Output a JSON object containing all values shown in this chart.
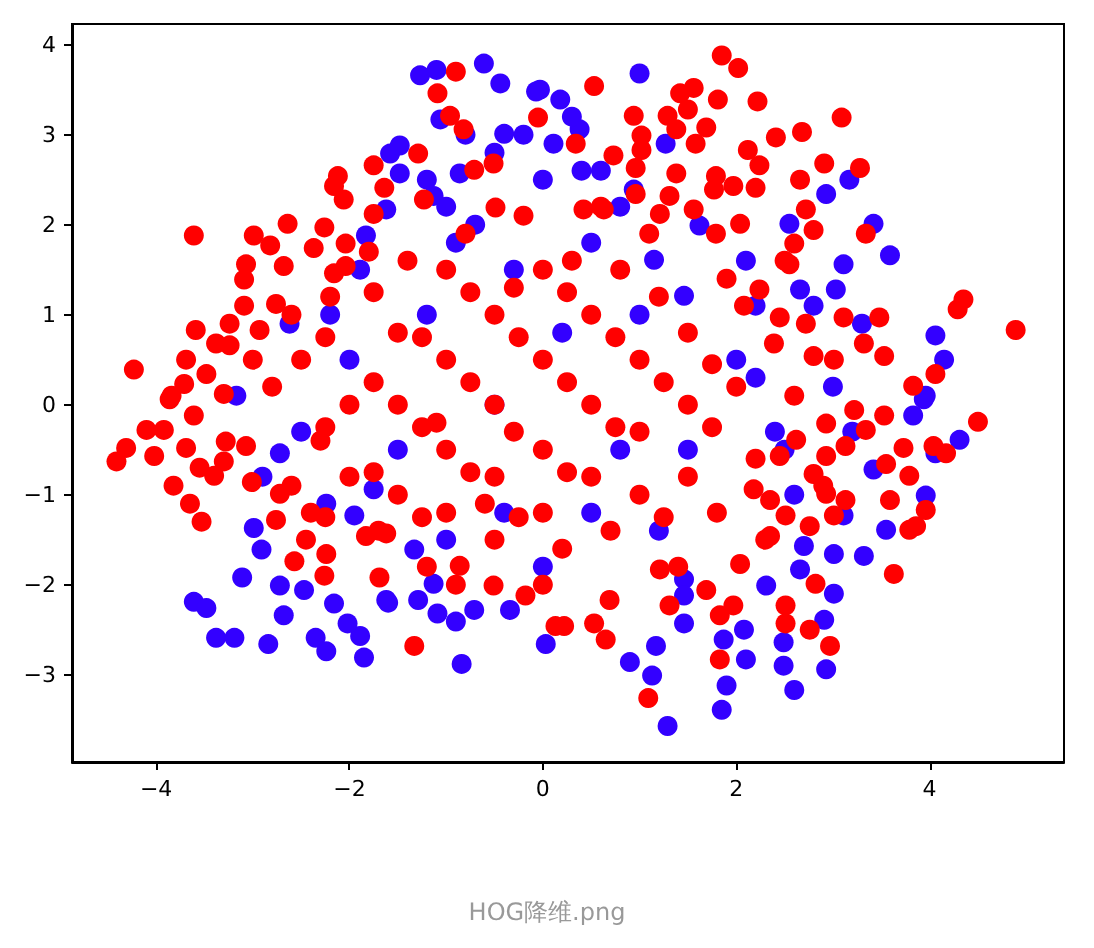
{
  "chart_data": {
    "type": "scatter",
    "marker": "circle",
    "xlim": [
      -4.87,
      5.39
    ],
    "ylim": [
      -3.97,
      4.23
    ],
    "xticks": [
      -4,
      -2,
      0,
      2,
      4
    ],
    "yticks": [
      -3,
      -2,
      -1,
      0,
      1,
      2,
      3,
      4
    ],
    "annotations": [
      "HOG降维.png"
    ],
    "series": [
      {
        "color": "#3300ff",
        "x": [
          -1.27,
          -1.1,
          -0.61,
          -0.44,
          -0.07,
          -1.06,
          -1.58,
          -1.48,
          -1.48,
          -0.4,
          -0.86,
          -1.13,
          -1.83,
          -1.62,
          -1.89,
          -2.62,
          -3.17,
          1.0,
          0.18,
          -0.03,
          0.38,
          0.11,
          2.93,
          3.17,
          2.55,
          3.42,
          3.59,
          3.11,
          2.66,
          3.03,
          4.06,
          4.15,
          3.94,
          1.27,
          0.94,
          1.62,
          1.46,
          1.15,
          -3.61,
          -3.48,
          -3.38,
          -3.19,
          -2.84,
          -3.11,
          -2.99,
          -2.91,
          -2.72,
          -2.68,
          -2.47,
          -2.35,
          -2.24,
          -1.85,
          -1.89,
          -2.02,
          -2.16,
          -1.62,
          -1.29,
          -1.09,
          -0.9,
          -0.71,
          -0.84,
          -0.34,
          0.03,
          -1.13,
          -2.72,
          -2.24,
          -1.95,
          -1.75,
          -1.33,
          1.29,
          1.85,
          1.9,
          2.49,
          2.6,
          2.93,
          2.1,
          1.13,
          1.17,
          0.9,
          1.46,
          1.87,
          2.08,
          2.49,
          2.91,
          3.01,
          2.31,
          2.66,
          2.7,
          3.01,
          3.32,
          3.55,
          3.96,
          4.31,
          4.06,
          3.83,
          3.96,
          3.42,
          3.11,
          1.46,
          1.46,
          -1.0,
          -0.5,
          0.0,
          -0.3,
          0.5,
          1.0,
          -2.0,
          -1.5,
          -1.0,
          0.0,
          0.5,
          1.5,
          2.0,
          2.5,
          3.0,
          -2.5,
          -0.5,
          0.8,
          -1.6,
          -0.4,
          1.2,
          2.2,
          -2.2,
          0.2,
          -0.7,
          0.6,
          2.8,
          3.3,
          -1.2,
          -2.9,
          -0.2,
          0.3,
          -0.8,
          0.8,
          0.4,
          -1.2,
          -0.9,
          2.1,
          2.4,
          2.2,
          3.2,
          2.6
        ],
        "values": [
          3.66,
          3.72,
          3.79,
          3.57,
          3.48,
          3.17,
          2.79,
          2.88,
          2.57,
          3.01,
          2.57,
          2.32,
          1.88,
          2.17,
          1.5,
          0.9,
          0.1,
          3.68,
          3.39,
          3.5,
          3.06,
          2.9,
          2.34,
          2.5,
          2.01,
          2.01,
          1.66,
          1.56,
          1.28,
          1.28,
          0.77,
          0.5,
          0.06,
          2.9,
          2.39,
          1.99,
          1.21,
          1.61,
          -2.19,
          -2.26,
          -2.59,
          -2.59,
          -2.66,
          -1.92,
          -1.37,
          -1.61,
          -2.01,
          -2.34,
          -2.06,
          -2.59,
          -2.74,
          -2.81,
          -2.57,
          -2.43,
          -2.21,
          -2.17,
          -2.17,
          -2.32,
          -2.41,
          -2.28,
          -2.88,
          -2.28,
          -2.66,
          -1.99,
          -0.54,
          -1.1,
          -1.23,
          -0.94,
          -1.61,
          -3.57,
          -3.39,
          -3.12,
          -2.9,
          -3.17,
          -2.94,
          -2.83,
          -3.01,
          -2.68,
          -2.86,
          -2.43,
          -2.61,
          -2.5,
          -2.64,
          -2.39,
          -2.1,
          -2.01,
          -1.83,
          -1.57,
          -1.66,
          -1.68,
          -1.39,
          -1.01,
          -0.39,
          -0.54,
          -0.12,
          0.1,
          -0.72,
          -1.23,
          -1.94,
          -2.12,
          2.2,
          2.8,
          2.5,
          1.5,
          1.8,
          1.0,
          0.5,
          -0.5,
          -1.5,
          -1.8,
          -1.2,
          -0.5,
          0.5,
          -0.5,
          0.2,
          -0.3,
          0.0,
          -0.5,
          -2.2,
          -1.2,
          -1.4,
          1.1,
          1.0,
          0.8,
          2.0,
          2.6,
          1.1,
          0.9,
          1.0,
          -0.8,
          3.0,
          3.2,
          3.0,
          2.2,
          2.6,
          2.5,
          1.8,
          1.6,
          -0.3,
          0.3,
          -0.3,
          -1.0
        ]
      },
      {
        "color": "#ff0000",
        "x": [
          -0.9,
          -1.09,
          -0.96,
          -0.82,
          -0.05,
          -1.29,
          -1.75,
          -0.51,
          -0.71,
          -2.12,
          -2.16,
          -2.06,
          -1.64,
          -1.75,
          -1.23,
          -0.49,
          -3.61,
          -2.99,
          -2.82,
          -2.64,
          -2.26,
          -2.37,
          -2.04,
          -3.07,
          -3.09,
          -2.68,
          -2.16,
          -2.04,
          -3.09,
          -2.76,
          -3.59,
          -3.24,
          -2.93,
          -3.69,
          -3.38,
          -3.24,
          -4.23,
          -3.84,
          -3.71,
          -3.48,
          -3.3,
          -4.41,
          -4.31,
          -4.1,
          -3.92,
          -4.02,
          -3.86,
          -3.61,
          -3.69,
          -3.82,
          -3.65,
          -3.53,
          -3.55,
          -3.4,
          -3.3,
          -3.28,
          -3.01,
          -3.07,
          -2.72,
          -2.76,
          -2.57,
          -2.45,
          -2.24,
          -2.26,
          -1.69,
          -1.33,
          -1.83,
          -1.62,
          -0.51,
          -0.18,
          -0.86,
          0.13,
          1.85,
          2.02,
          0.53,
          1.42,
          1.56,
          1.81,
          2.22,
          0.94,
          1.29,
          1.5,
          1.38,
          1.02,
          1.69,
          2.41,
          2.68,
          3.09,
          1.58,
          2.12,
          0.73,
          1.02,
          2.24,
          2.91,
          3.28,
          0.96,
          1.38,
          1.79,
          2.66,
          1.97,
          2.2,
          0.96,
          1.77,
          1.31,
          1.56,
          1.21,
          2.72,
          2.8,
          3.34,
          2.04,
          1.79,
          2.6,
          0.34,
          0.63,
          0.42,
          4.35,
          4.29,
          4.89,
          3.48,
          3.11,
          2.72,
          2.45,
          2.08,
          2.24,
          2.55,
          2.8,
          3.01,
          3.32,
          3.53,
          3.83,
          4.06,
          2.39,
          4.5,
          4.04,
          4.17,
          3.73,
          3.55,
          3.79,
          3.59,
          3.96,
          3.79,
          3.86,
          3.63,
          3.13,
          2.93,
          3.34,
          3.53,
          3.22,
          2.93,
          2.62,
          2.8,
          2.93,
          3.13,
          3.01,
          2.51,
          2.76,
          2.35,
          2.82,
          2.51,
          2.51,
          2.76,
          2.97,
          1.83,
          1.09,
          1.83,
          1.97,
          1.31,
          0.69,
          0.22,
          0.53,
          0.65,
          1.21,
          1.69,
          2.04,
          2.35,
          2.45,
          2.18,
          -2.5,
          -2.0,
          -2.0,
          -1.5,
          -1.5,
          -1.5,
          -1.0,
          -1.0,
          -1.0,
          -1.0,
          -0.5,
          -0.5,
          -0.5,
          -0.5,
          0.0,
          0.0,
          0.0,
          0.0,
          0.5,
          0.5,
          0.5,
          1.0,
          1.0,
          1.0,
          1.5,
          1.5,
          1.5,
          -2.2,
          -1.8,
          -0.8,
          0.3,
          -2.8,
          -2.3,
          -1.2,
          0.2,
          2.0,
          1.8,
          -0.2,
          0.8,
          -1.7,
          1.2,
          -0.3,
          0.7,
          -2.6,
          2.2,
          -2.25,
          -2.25,
          -2.25,
          -1.75,
          -1.75,
          -1.75,
          -1.25,
          -1.25,
          -1.25,
          -0.75,
          -0.75,
          -0.75,
          -0.25,
          -0.25,
          0.25,
          0.25,
          0.25,
          0.75,
          0.75,
          1.25,
          1.25,
          1.75,
          1.75,
          -2.6,
          -3.0,
          -2.4,
          0.6,
          -0.3,
          1.1,
          -1.4,
          1.4,
          0.0,
          -0.9,
          2.3,
          2.5,
          1.9,
          2.6,
          2.9,
          -1.1,
          -0.6
        ],
        "values": [
          3.7,
          3.46,
          3.21,
          3.06,
          3.19,
          2.79,
          2.66,
          2.68,
          2.61,
          2.54,
          2.43,
          2.28,
          2.41,
          2.12,
          2.28,
          2.19,
          1.88,
          1.88,
          1.77,
          2.01,
          1.97,
          1.74,
          1.79,
          1.56,
          1.39,
          1.54,
          1.46,
          1.54,
          1.1,
          1.12,
          0.83,
          0.9,
          0.83,
          0.5,
          0.68,
          0.66,
          0.39,
          0.1,
          0.23,
          0.34,
          0.12,
          -0.63,
          -0.48,
          -0.28,
          -0.28,
          -0.57,
          0.06,
          -0.12,
          -0.48,
          -0.9,
          -1.1,
          -1.3,
          -0.7,
          -0.79,
          -0.63,
          -0.41,
          -0.86,
          -0.46,
          -0.99,
          -1.28,
          -1.74,
          -1.5,
          -1.66,
          -1.9,
          -1.92,
          -2.68,
          -1.46,
          -1.43,
          -2.01,
          -2.12,
          -1.79,
          -2.46,
          3.88,
          3.74,
          3.54,
          3.46,
          3.52,
          3.39,
          3.37,
          3.21,
          3.21,
          3.28,
          3.06,
          2.99,
          3.08,
          2.97,
          3.03,
          3.19,
          2.9,
          2.83,
          2.77,
          2.83,
          2.66,
          2.68,
          2.63,
          2.63,
          2.57,
          2.54,
          2.5,
          2.43,
          2.41,
          2.34,
          2.39,
          2.32,
          2.17,
          2.12,
          2.17,
          1.94,
          1.9,
          2.01,
          1.9,
          1.79,
          2.9,
          2.17,
          2.17,
          1.17,
          1.06,
          0.83,
          0.97,
          0.97,
          0.9,
          0.97,
          1.1,
          1.28,
          1.56,
          0.54,
          0.5,
          0.68,
          0.54,
          0.21,
          0.34,
          0.68,
          -0.19,
          -0.46,
          -0.54,
          -0.48,
          -0.66,
          -0.79,
          -1.06,
          -1.17,
          -1.39,
          -1.35,
          -1.88,
          -0.46,
          -0.57,
          -0.28,
          -0.12,
          -0.06,
          -0.21,
          -0.39,
          -0.77,
          -0.99,
          -1.06,
          -1.23,
          -1.23,
          -1.35,
          -1.46,
          -1.99,
          -2.23,
          -2.43,
          -2.5,
          -2.68,
          -2.83,
          -3.26,
          -2.34,
          -2.23,
          -2.23,
          -2.17,
          -2.46,
          -2.43,
          -2.61,
          -1.83,
          -2.06,
          -1.77,
          -1.06,
          -0.57,
          -0.94,
          0.5,
          0.0,
          -0.8,
          0.8,
          0.0,
          -1.0,
          1.5,
          0.5,
          -0.5,
          -1.2,
          1.0,
          0.0,
          -0.8,
          -1.5,
          1.5,
          0.5,
          -0.5,
          -1.2,
          1.0,
          0.0,
          -0.8,
          0.5,
          -0.3,
          -1.0,
          0.8,
          0.0,
          -0.8,
          1.2,
          1.7,
          1.9,
          1.6,
          0.2,
          -0.4,
          -1.8,
          -1.6,
          0.2,
          -1.2,
          2.1,
          1.5,
          -1.4,
          1.2,
          -0.3,
          -1.4,
          -0.9,
          -0.6,
          -1.25,
          -0.25,
          0.75,
          -0.75,
          0.25,
          1.25,
          -1.25,
          -0.25,
          0.75,
          -0.75,
          0.25,
          1.25,
          -1.25,
          0.75,
          -0.75,
          0.25,
          1.25,
          -0.25,
          0.75,
          -1.25,
          0.25,
          -0.25,
          0.45,
          1.0,
          0.5,
          -1.2,
          2.2,
          1.3,
          1.9,
          1.6,
          -1.8,
          -2.0,
          -2.0,
          -1.5,
          1.6,
          1.4,
          0.1,
          -0.9,
          -0.2,
          -1.1
        ]
      }
    ]
  }
}
